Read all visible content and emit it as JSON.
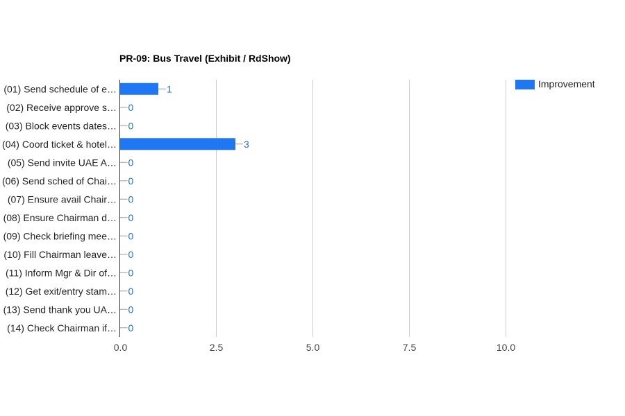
{
  "chart_data": {
    "type": "bar",
    "orientation": "horizontal",
    "title": "PR-09: Bus Travel (Exhibit / RdShow)",
    "categories": [
      "(01) Send schedule of e…",
      "(02) Receive approve s…",
      "(03) Block events dates…",
      "(04) Coord ticket & hotel…",
      "(05) Send invite UAE A…",
      "(06) Send sched of Chai…",
      "(07) Ensure avail Chair…",
      "(08) Ensure Chairman d…",
      "(09) Check briefing mee…",
      "(10) Fill Chairman leave…",
      "(11) Inform Mgr & Dir of…",
      "(12) Get exit/entry stam…",
      "(13) Send thank you UA…",
      "(14) Check Chairman if…"
    ],
    "series": [
      {
        "name": "Improvement",
        "color": "#1f77f4",
        "values": [
          1,
          0,
          0,
          3,
          0,
          0,
          0,
          0,
          0,
          0,
          0,
          0,
          0,
          0
        ]
      }
    ],
    "x_ticks": [
      "0.0",
      "2.5",
      "5.0",
      "7.5",
      "10.0"
    ],
    "xlim": [
      0,
      12
    ],
    "grid": true,
    "legend_position": "top-right",
    "data_label_color": "#1f6fd1"
  }
}
